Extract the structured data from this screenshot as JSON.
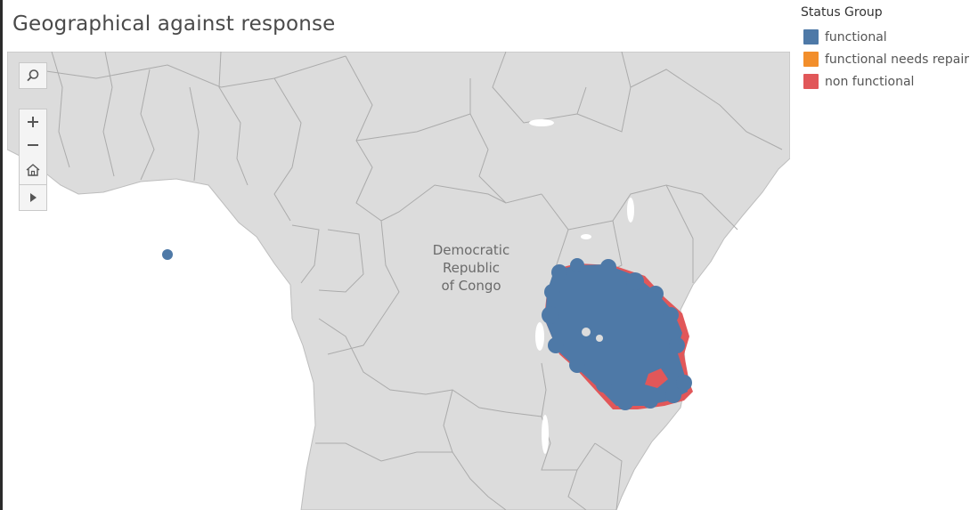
{
  "title": "Geographical against response",
  "legend": {
    "title": "Status Group",
    "items": [
      {
        "label": "functional",
        "color": "#4e79a7"
      },
      {
        "label": "functional needs repair",
        "color": "#f28e2b"
      },
      {
        "label": "non functional",
        "color": "#e15759"
      }
    ]
  },
  "map": {
    "country_label": [
      "Democratic",
      "Republic",
      "of Congo"
    ],
    "land_color": "#d9d9d9",
    "water_color": "#ffffff",
    "border_color": "#a8a8a8"
  },
  "controls": {
    "search_icon": "search-icon",
    "zoom_in_icon": "plus-icon",
    "zoom_out_icon": "minus-icon",
    "home_icon": "home-icon",
    "expand_icon": "play-icon"
  }
}
